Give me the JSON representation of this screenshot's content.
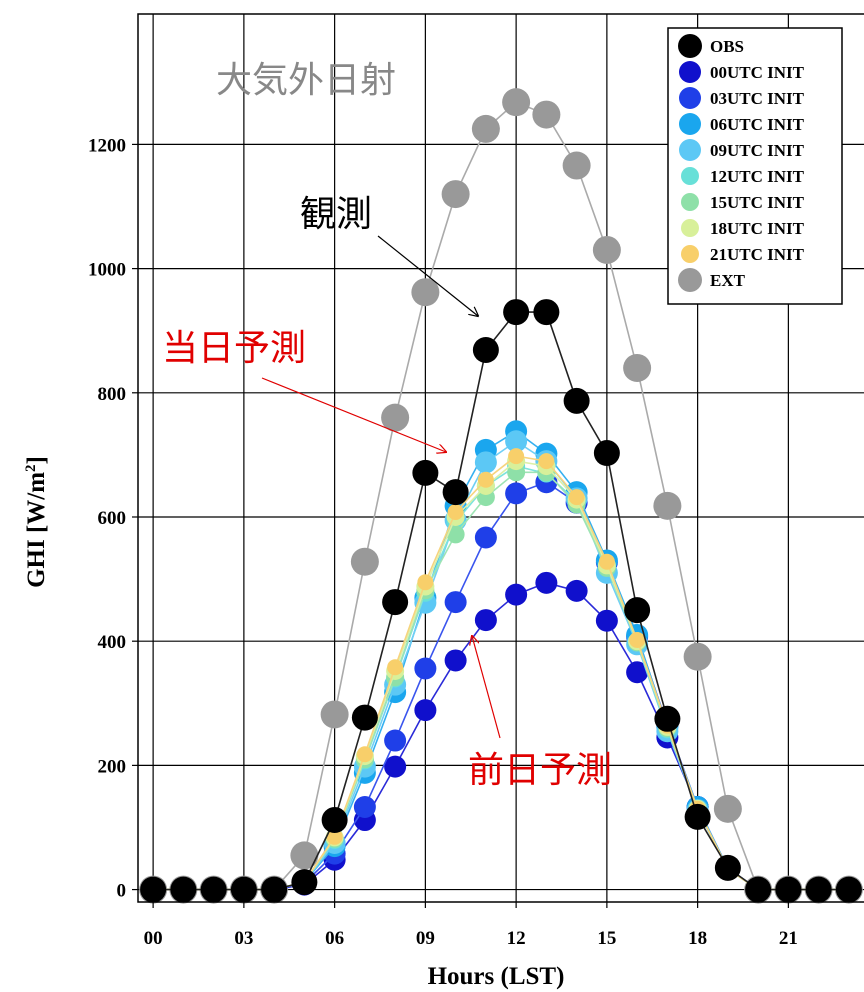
{
  "chart_data": {
    "type": "line",
    "xlabel": "Hours (LST)",
    "ylabel": "GHI [W/m",
    "ylabel_sup": "2",
    "ylabel_end": "]",
    "xlim": [
      -0.5,
      23.5
    ],
    "ylim": [
      -20,
      1410
    ],
    "xticks": [
      0,
      3,
      6,
      9,
      12,
      15,
      18,
      21
    ],
    "xtick_labels": [
      "00",
      "03",
      "06",
      "09",
      "12",
      "15",
      "18",
      "21"
    ],
    "yticks": [
      0,
      200,
      400,
      600,
      800,
      1000,
      1200
    ],
    "ytick_labels": [
      "0",
      "200",
      "400",
      "600",
      "800",
      "1000",
      "1200"
    ],
    "grid": true,
    "legend_position": "top-right",
    "x": [
      0,
      1,
      2,
      3,
      4,
      5,
      6,
      7,
      8,
      9,
      10,
      11,
      12,
      13,
      14,
      15,
      16,
      17,
      18,
      19,
      20,
      21,
      22,
      23
    ],
    "series": [
      {
        "name": "EXT",
        "color": "#999999",
        "line_color": "#aaaaaa",
        "marker_radius": 14,
        "values": [
          0,
          0,
          0,
          0,
          0,
          55,
          282,
          528,
          760,
          962,
          1120,
          1225,
          1268,
          1248,
          1166,
          1030,
          840,
          618,
          375,
          130,
          0,
          0,
          0,
          0
        ]
      },
      {
        "name": "00UTC INIT",
        "color": "#1010cc",
        "line_color": "#2a2ad8",
        "marker_radius": 11,
        "values": [
          0,
          0,
          0,
          0,
          0,
          8,
          48,
          112,
          198,
          289,
          369,
          434,
          475,
          494,
          481,
          433,
          350,
          245,
          133,
          34,
          0,
          0,
          0,
          0
        ]
      },
      {
        "name": "03UTC INIT",
        "color": "#1f3fe8",
        "line_color": "#3a55ee",
        "marker_radius": 11,
        "values": [
          0,
          0,
          0,
          0,
          0,
          10,
          58,
          133,
          240,
          356,
          463,
          567,
          638,
          656,
          623,
          527,
          407,
          265,
          133,
          34,
          0,
          0,
          0,
          0
        ]
      },
      {
        "name": "06UTC INIT",
        "color": "#1aa6ee",
        "line_color": "#35b0f0",
        "marker_radius": 11,
        "values": [
          0,
          0,
          0,
          0,
          0,
          12,
          70,
          188,
          318,
          470,
          618,
          708,
          738,
          702,
          640,
          530,
          410,
          262,
          133,
          34,
          0,
          0,
          0,
          0
        ]
      },
      {
        "name": "09UTC INIT",
        "color": "#5cc8f5",
        "line_color": "#70cff5",
        "marker_radius": 11,
        "values": [
          0,
          0,
          0,
          0,
          0,
          12,
          75,
          198,
          330,
          462,
          595,
          688,
          722,
          690,
          630,
          510,
          395,
          255,
          128,
          33,
          0,
          0,
          0,
          0
        ]
      },
      {
        "name": "12UTC INIT",
        "color": "#68e0d8",
        "line_color": "#7ce3dc",
        "marker_radius": 9,
        "values": [
          0,
          0,
          0,
          0,
          0,
          12,
          80,
          208,
          340,
          478,
          592,
          650,
          682,
          670,
          625,
          520,
          398,
          258,
          130,
          33,
          0,
          0,
          0,
          0
        ]
      },
      {
        "name": "15UTC INIT",
        "color": "#8ee0a8",
        "line_color": "#9ee4b4",
        "marker_radius": 9,
        "values": [
          0,
          0,
          0,
          0,
          0,
          12,
          82,
          210,
          342,
          482,
          572,
          632,
          672,
          672,
          620,
          518,
          398,
          260,
          130,
          33,
          0,
          0,
          0,
          0
        ]
      },
      {
        "name": "18UTC INIT",
        "color": "#d8f09a",
        "line_color": "#dcf0a8",
        "marker_radius": 9,
        "values": [
          0,
          0,
          0,
          0,
          0,
          12,
          84,
          215,
          352,
          488,
          600,
          650,
          690,
          682,
          628,
          522,
          400,
          262,
          130,
          33,
          0,
          0,
          0,
          0
        ]
      },
      {
        "name": "21UTC INIT",
        "color": "#f8cf6a",
        "line_color": "#f6d47e",
        "marker_radius": 8,
        "values": [
          0,
          0,
          0,
          0,
          0,
          12,
          85,
          218,
          358,
          495,
          608,
          660,
          698,
          690,
          632,
          528,
          402,
          264,
          130,
          33,
          0,
          0,
          0,
          0
        ]
      },
      {
        "name": "OBS",
        "color": "#000000",
        "line_color": "#222222",
        "marker_radius": 13,
        "values": [
          0,
          0,
          0,
          0,
          0,
          12,
          112,
          277,
          463,
          671,
          640,
          869,
          930,
          930,
          787,
          703,
          450,
          275,
          117,
          35,
          0,
          0,
          0,
          0
        ]
      }
    ],
    "legend_order": [
      "OBS",
      "00UTC INIT",
      "03UTC INIT",
      "06UTC INIT",
      "09UTC INIT",
      "12UTC INIT",
      "15UTC INIT",
      "18UTC INIT",
      "21UTC INIT",
      "EXT"
    ],
    "annotations": [
      {
        "text": "大気外日射",
        "color": "#888888"
      },
      {
        "text": "観測",
        "color": "#000000"
      },
      {
        "text": "当日予測",
        "color": "#e00000"
      },
      {
        "text": "前日予測",
        "color": "#e00000"
      }
    ]
  }
}
